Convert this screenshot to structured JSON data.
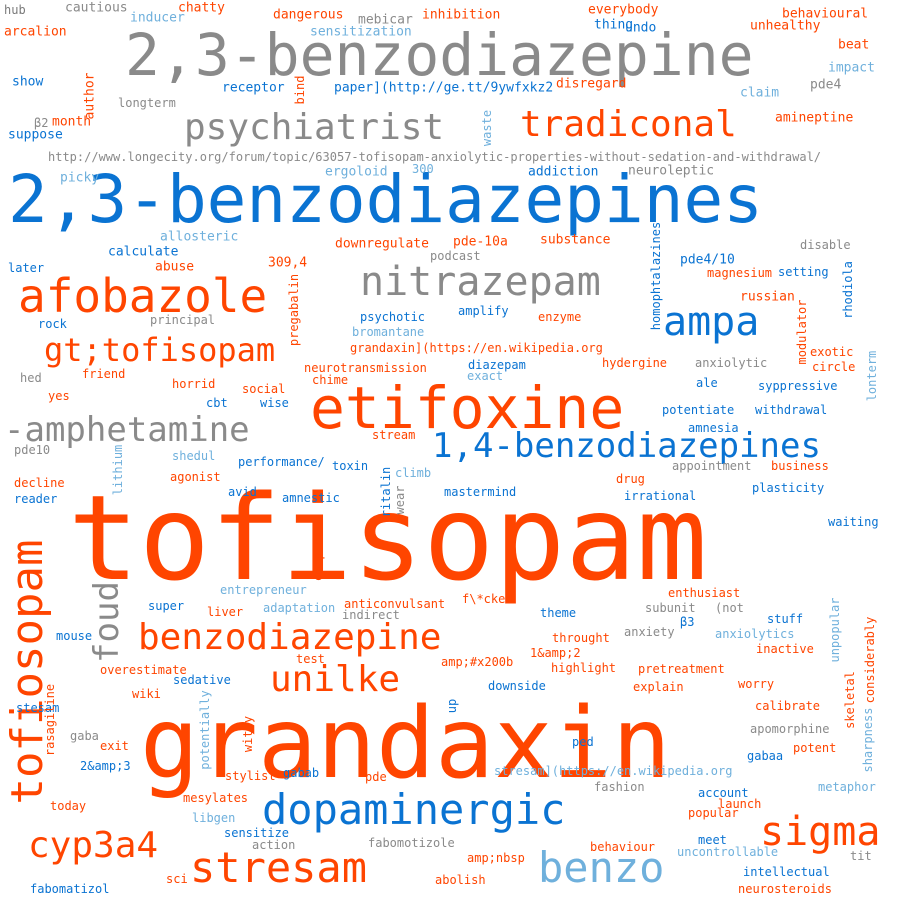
{
  "colors": {
    "background": "#ffffff",
    "orange": "#ff4500",
    "blue": "#0a73d2",
    "gray": "#8a8a8a",
    "lightblue": "#6fb0dc",
    "darkgray": "#7a7a7a"
  },
  "words": [
    "tofisopam",
    "grandaxin",
    "2,3-benzodiazepine",
    "2,3-benzodiazepines",
    "etifoxine",
    "afobazole",
    "nitrazepam",
    "psychiatrist",
    "tradiconal",
    "ampa",
    "gt;tofisopam",
    "-amphetamine",
    "1,4-benzodiazepines",
    "benzodiazepine",
    "unilke",
    "dopaminergic",
    "tofiosopam",
    "foud",
    "sigma",
    "cyp3a4",
    "stresam",
    "benzo",
    "hub",
    "cautious",
    "chatty",
    "dangerous",
    "mebicar",
    "inhibition",
    "everybody",
    "behavioural",
    "arcalion",
    "inducer",
    "sensitization",
    "thing",
    "undo",
    "unhealthy",
    "beat",
    "show",
    "author",
    "bind",
    "receptor",
    "paper](http://ge.tt/9ywfxkz2",
    "disregard",
    "pde4",
    "impact",
    "claim",
    "β2",
    "month",
    "longterm",
    "suppose",
    "waste",
    "amineptine",
    "http://www.longecity.org/forum/topic/63057-tofisopam-anxiolytic-properties-without-sedation-and-withdrawal/",
    "picky",
    "ergoloid",
    "300",
    "addiction",
    "neuroleptic",
    "allosteric",
    "calculate",
    "downregulate",
    "pde-10a",
    "substance",
    "disable",
    "later",
    "podcast",
    "pde4/10",
    "setting",
    "abuse",
    "309,4",
    "magnesium",
    "rhodiola",
    "pregabalin",
    "homophtalazines",
    "russian",
    "principal",
    "psychotic",
    "amplify",
    "enzyme",
    "modulator",
    "rock",
    "bromantane",
    "hed",
    "grandaxin](https://en.wikipedia.org",
    "exotic",
    "friend",
    "neurotransmission",
    "hydergine",
    "anxiolytic",
    "circle",
    "chime",
    "diazepam",
    "exact",
    "horrid",
    "social",
    "ale",
    "syppressive",
    "lonterm",
    "yes",
    "cbt",
    "wise",
    "potentiate",
    "withdrawal",
    "amnesia",
    "stream",
    "pde10",
    "lithium",
    "shedul",
    "performance/",
    "toxin",
    "climb",
    "appointment",
    "business",
    "agonist",
    "ritalin",
    "drug",
    "decline",
    "avid",
    "amnestic",
    "wear",
    "reader",
    "mastermind",
    "irrational",
    "plasticity",
    "waiting",
    "complex",
    "entrepreneur",
    "enthusiast",
    "f\\*cked",
    "super",
    "liver",
    "adaptation",
    "anticonvulsant",
    "subunit",
    "(not",
    "indirect",
    "theme",
    "stuff",
    "mouse",
    "β3",
    "anxiolytics",
    "unpopular",
    "throught",
    "1&amp;2",
    "anxiety",
    "inactive",
    "considerably",
    "test",
    "amp;#x200b",
    "highlight",
    "overestimate",
    "pretreatment",
    "sedative",
    "explain",
    "worry",
    "wiki",
    "skeletal",
    "stesam",
    "up",
    "downside",
    "calibrate",
    "potentially",
    "gaba",
    "rasagiline",
    "apomorphine",
    "sharpness",
    "ped",
    "exit",
    "witty",
    "gabaa",
    "potent",
    "stylist",
    "gabab",
    "stresam](https://en.wikipedia.org",
    "2&amp;3",
    "pde",
    "fashion",
    "mesylates",
    "account",
    "metaphor",
    "today",
    "launch",
    "popular",
    "libgen",
    "sensitize",
    "action",
    "fabomotizole",
    "behaviour",
    "meet",
    "uncontrollable",
    "amp;nbsp",
    "tit",
    "sci",
    "intellectual",
    "fabomatizol",
    "abolish",
    "neurosteroids"
  ]
}
